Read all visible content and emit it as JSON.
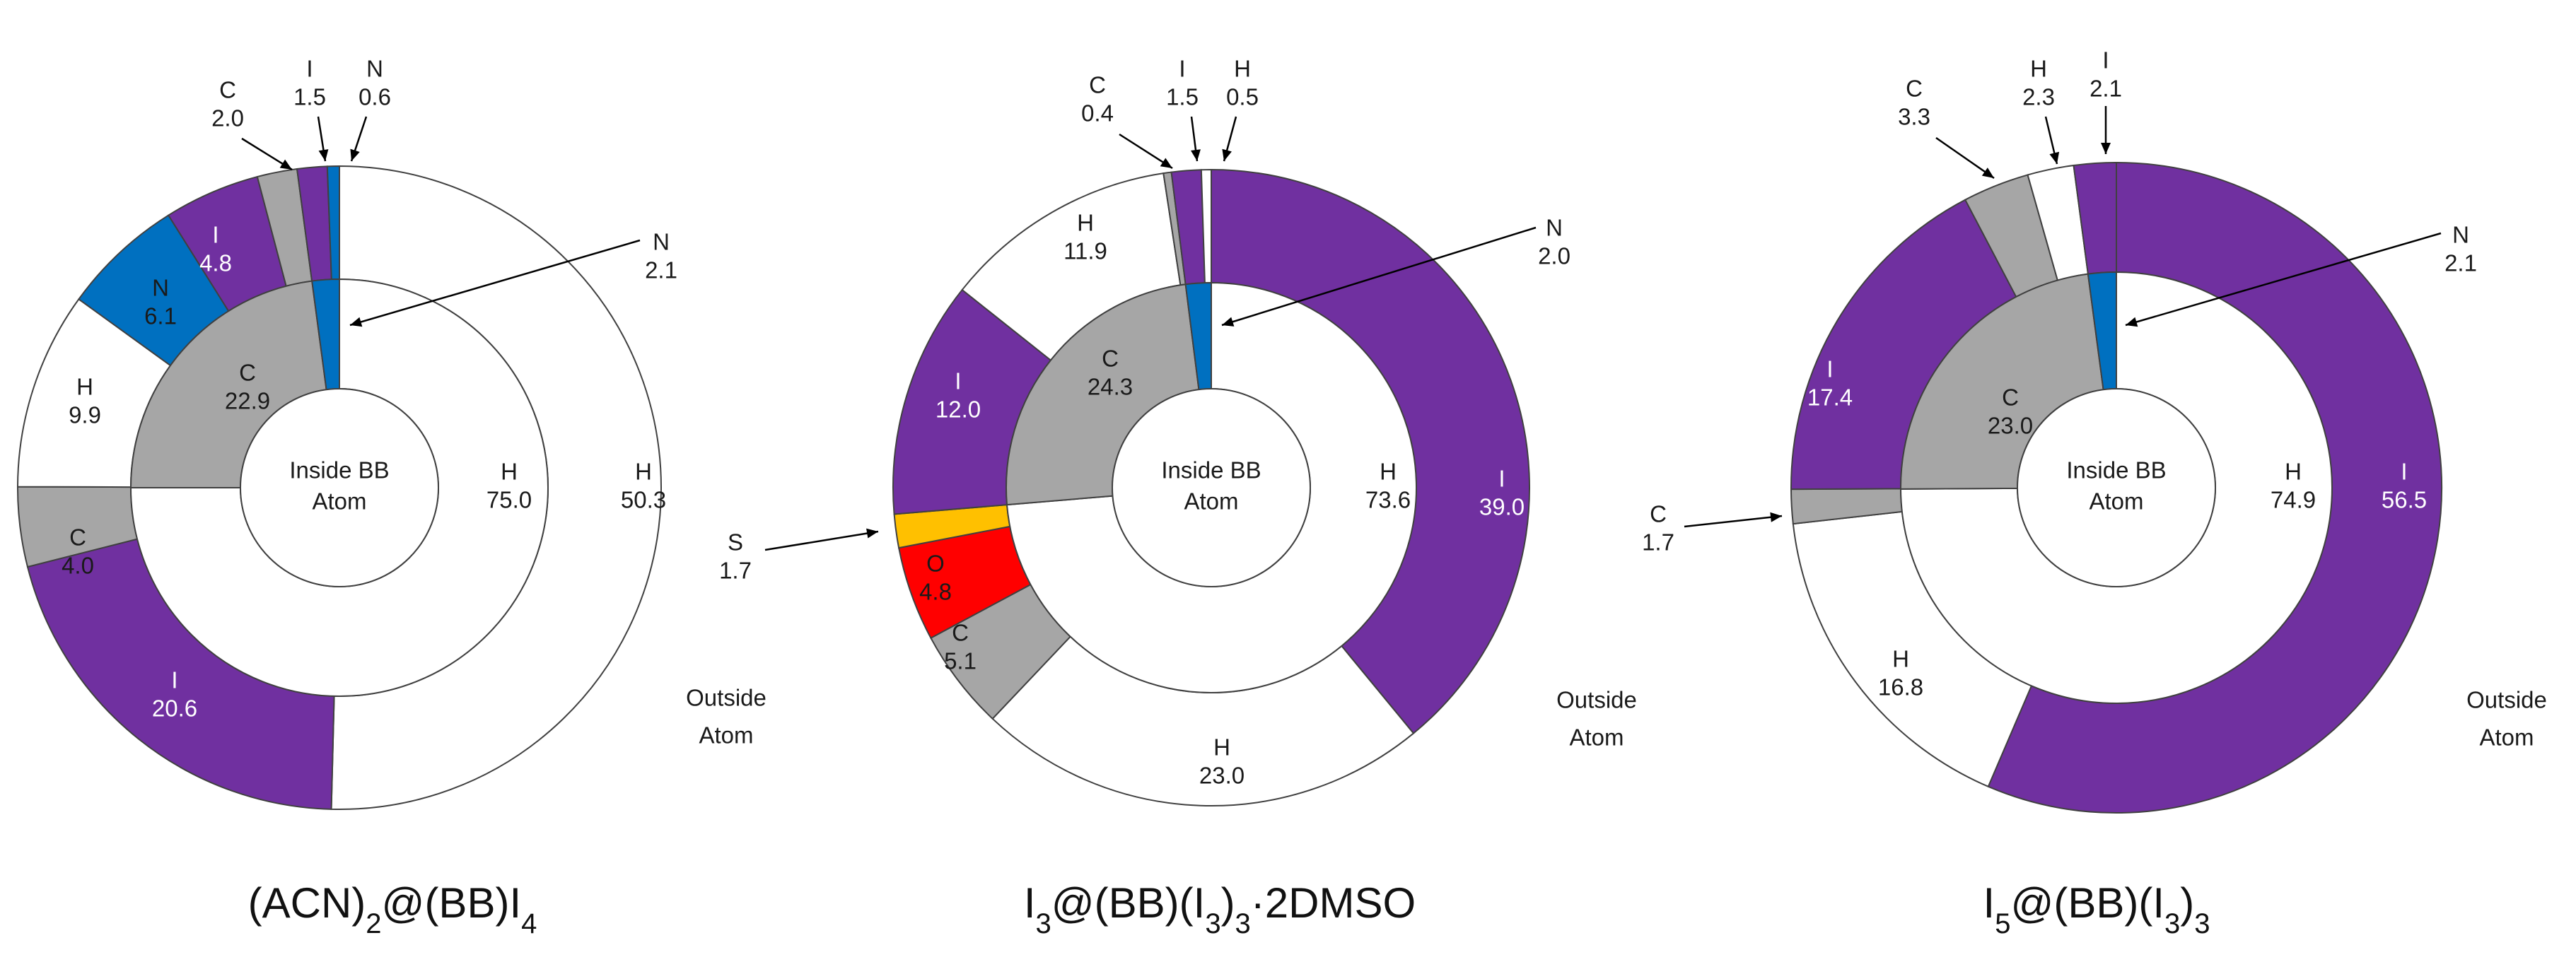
{
  "chart_data": [
    {
      "type": "pie",
      "title": "(ACN)2@(BB)I4",
      "center_label": [
        "Inside BB",
        "Atom"
      ],
      "outer_label": [
        "Outside",
        "Atom"
      ],
      "inner": [
        {
          "label": "H",
          "value": 75.0,
          "color": "#ffffff"
        },
        {
          "label": "C",
          "value": 22.9,
          "color": "#a6a6a6"
        },
        {
          "label": "N",
          "value": 2.1,
          "color": "#0070c0"
        }
      ],
      "outer": [
        {
          "label": "H",
          "value": 50.3,
          "color": "#ffffff"
        },
        {
          "label": "I",
          "value": 20.6,
          "color": "#7030a0"
        },
        {
          "label": "C",
          "value": 4.0,
          "color": "#a6a6a6"
        },
        {
          "label": "H",
          "value": 9.9,
          "color": "#ffffff"
        },
        {
          "label": "N",
          "value": 6.1,
          "color": "#0070c0"
        },
        {
          "label": "I",
          "value": 4.8,
          "color": "#7030a0"
        },
        {
          "label": "C",
          "value": 2.0,
          "color": "#a6a6a6"
        },
        {
          "label": "I",
          "value": 1.5,
          "color": "#7030a0"
        },
        {
          "label": "N",
          "value": 0.6,
          "color": "#0070c0"
        }
      ]
    },
    {
      "type": "pie",
      "title": "I3@(BB)(I3)3·2DMSO",
      "center_label": [
        "Inside BB",
        "Atom"
      ],
      "outer_label": [
        "Outside",
        "Atom"
      ],
      "inner": [
        {
          "label": "H",
          "value": 73.6,
          "color": "#ffffff"
        },
        {
          "label": "C",
          "value": 24.3,
          "color": "#a6a6a6"
        },
        {
          "label": "N",
          "value": 2.0,
          "color": "#0070c0"
        }
      ],
      "outer": [
        {
          "label": "I",
          "value": 39.0,
          "color": "#7030a0"
        },
        {
          "label": "H",
          "value": 23.0,
          "color": "#ffffff"
        },
        {
          "label": "C",
          "value": 5.1,
          "color": "#a6a6a6"
        },
        {
          "label": "O",
          "value": 4.8,
          "color": "#ff0000"
        },
        {
          "label": "S",
          "value": 1.7,
          "color": "#ffc000"
        },
        {
          "label": "I",
          "value": 12.0,
          "color": "#7030a0"
        },
        {
          "label": "H",
          "value": 11.9,
          "color": "#ffffff"
        },
        {
          "label": "C",
          "value": 0.4,
          "color": "#a6a6a6"
        },
        {
          "label": "I",
          "value": 1.5,
          "color": "#7030a0"
        },
        {
          "label": "H",
          "value": 0.5,
          "color": "#ffffff"
        }
      ]
    },
    {
      "type": "pie",
      "title": "I5@(BB)(I3)3",
      "center_label": [
        "Inside BB",
        "Atom"
      ],
      "outer_label": [
        "Outside",
        "Atom"
      ],
      "inner": [
        {
          "label": "H",
          "value": 74.9,
          "color": "#ffffff"
        },
        {
          "label": "C",
          "value": 23.0,
          "color": "#a6a6a6"
        },
        {
          "label": "N",
          "value": 2.1,
          "color": "#0070c0"
        }
      ],
      "outer": [
        {
          "label": "I",
          "value": 56.5,
          "color": "#7030a0"
        },
        {
          "label": "H",
          "value": 16.8,
          "color": "#ffffff"
        },
        {
          "label": "C",
          "value": 1.7,
          "color": "#a6a6a6"
        },
        {
          "label": "I",
          "value": 17.4,
          "color": "#7030a0"
        },
        {
          "label": "C",
          "value": 3.3,
          "color": "#a6a6a6"
        },
        {
          "label": "H",
          "value": 2.3,
          "color": "#ffffff"
        },
        {
          "label": "I",
          "value": 2.1,
          "color": "#7030a0"
        }
      ]
    }
  ]
}
